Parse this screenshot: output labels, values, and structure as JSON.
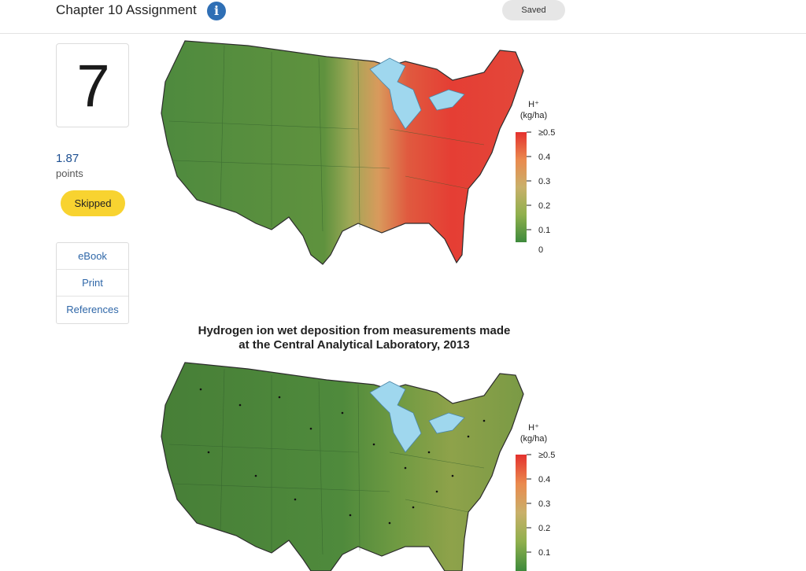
{
  "header": {
    "title": "Chapter 10 Assignment",
    "info_icon": "info-icon",
    "saved_label": "Saved"
  },
  "question": {
    "number": "7",
    "points_value": "1.87",
    "points_label": "points",
    "status": "Skipped"
  },
  "side_links": [
    "eBook",
    "Print",
    "References"
  ],
  "colors": {
    "accent": "#2f6fb5",
    "skipped": "#f8d330",
    "link": "#2f67a8",
    "water": "#9fd7ee"
  },
  "maps": [
    {
      "legend_title_line1": "H⁺",
      "legend_title_line2": "(kg/ha)",
      "legend_ticks": [
        "≥0.5",
        "0.4",
        "0.3",
        "0.2",
        "0.1",
        "0"
      ]
    },
    {
      "title": "Hydrogen ion wet deposition from measurements made at the Central Analytical Laboratory, 2013",
      "legend_title_line1": "H⁺",
      "legend_title_line2": "(kg/ha)",
      "legend_ticks": [
        "≥0.5",
        "0.4",
        "0.3",
        "0.2",
        "0.1"
      ]
    }
  ]
}
